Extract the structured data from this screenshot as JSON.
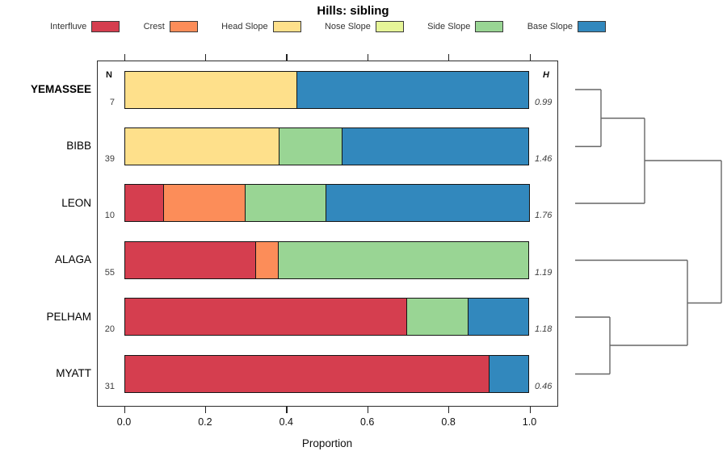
{
  "headers": {
    "n": "N",
    "h": "H"
  },
  "chart_data": {
    "type": "bar",
    "stacked": true,
    "orientation": "horizontal",
    "title": "Hills: sibling",
    "xlabel": "Proportion",
    "xlim": [
      0,
      1
    ],
    "x_ticks": [
      0.0,
      0.2,
      0.4,
      0.6,
      0.8,
      1.0
    ],
    "x_tick_labels": [
      "0.0",
      "0.2",
      "0.4",
      "0.6",
      "0.8",
      "1.0"
    ],
    "grid": false,
    "legend_position": "top",
    "categories": [
      "YEMASSEE",
      "BIBB",
      "LEON",
      "ALAGA",
      "PELHAM",
      "MYATT"
    ],
    "emphasized_category": "YEMASSEE",
    "n_values": [
      7,
      39,
      10,
      55,
      20,
      31
    ],
    "h_values": [
      0.99,
      1.46,
      1.76,
      1.19,
      1.18,
      0.46
    ],
    "series": [
      {
        "name": "Interfluve",
        "color": "#D53E4F",
        "values": [
          0,
          0,
          0.1,
          0.327,
          0.7,
          0.903
        ]
      },
      {
        "name": "Crest",
        "color": "#FC8D59",
        "values": [
          0,
          0,
          0.2,
          0.055,
          0,
          0
        ]
      },
      {
        "name": "Head Slope",
        "color": "#FEE08B",
        "values": [
          0.429,
          0.385,
          0,
          0,
          0,
          0
        ]
      },
      {
        "name": "Nose Slope",
        "color": "#E6F598",
        "values": [
          0,
          0,
          0,
          0,
          0,
          0
        ]
      },
      {
        "name": "Side Slope",
        "color": "#99D594",
        "values": [
          0,
          0.154,
          0.2,
          0.618,
          0.15,
          0
        ]
      },
      {
        "name": "Base Slope",
        "color": "#3288BD",
        "values": [
          0.571,
          0.462,
          0.5,
          0,
          0.15,
          0.097
        ]
      }
    ]
  },
  "dendrogram": {
    "stroke": "#666666",
    "segments": [
      [
        712,
        111,
        744,
        111
      ],
      [
        712,
        181.5,
        744,
        181.5
      ],
      [
        744,
        111,
        744,
        181.5
      ],
      [
        744,
        146.5,
        798,
        146.5
      ],
      [
        712,
        252,
        798,
        252
      ],
      [
        798,
        146.5,
        798,
        252
      ],
      [
        798,
        199,
        893,
        199
      ],
      [
        712,
        322.5,
        851,
        322.5
      ],
      [
        712,
        393,
        755,
        393
      ],
      [
        712,
        463.5,
        755,
        463.5
      ],
      [
        755,
        393,
        755,
        463.5
      ],
      [
        755,
        428,
        851,
        428
      ],
      [
        851,
        322.5,
        851,
        428
      ],
      [
        851,
        375.5,
        893,
        375.5
      ],
      [
        893,
        199,
        893,
        375.5
      ]
    ]
  }
}
